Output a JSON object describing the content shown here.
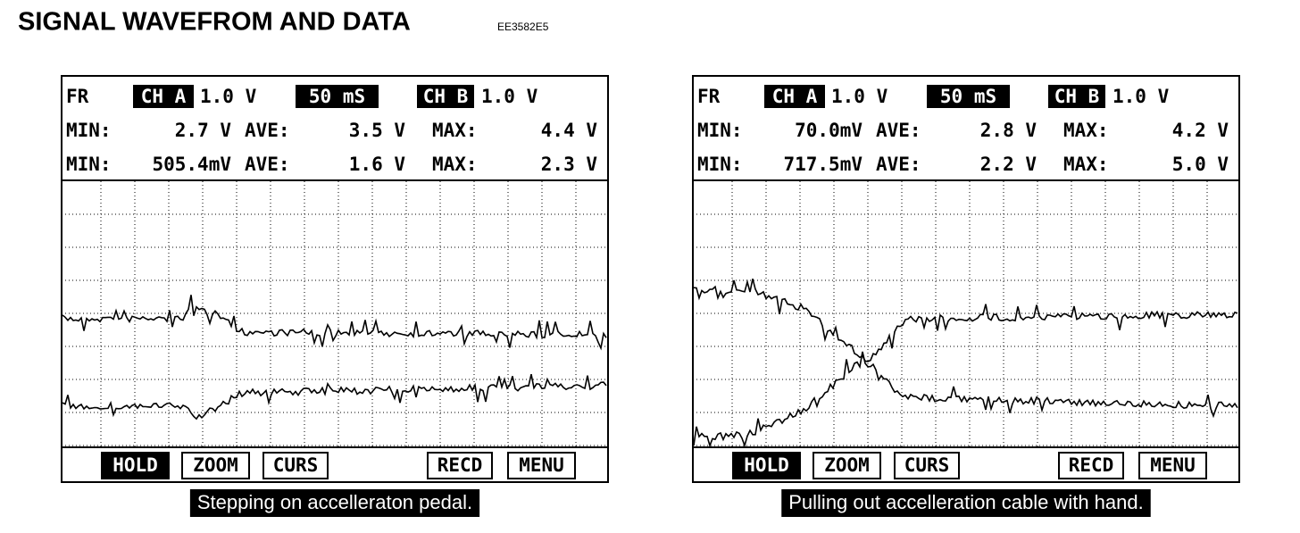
{
  "header": {
    "title": "SIGNAL WAVEFROM AND DATA",
    "code": "EE3582E5"
  },
  "panels": [
    {
      "status": {
        "fr": "FR",
        "ch_a": "CH A",
        "ch_a_scale": "1.0 V",
        "timebase": "50 mS",
        "ch_b": "CH B",
        "ch_b_scale": "1.0 V"
      },
      "rows": [
        {
          "min_label": "MIN:",
          "min": "2.7 V",
          "ave_label": "AVE:",
          "ave": "3.5 V",
          "max_label": "MAX:",
          "max": "4.4 V"
        },
        {
          "min_label": "MIN:",
          "min": "505.4mV",
          "ave_label": "AVE:",
          "ave": "1.6 V",
          "max_label": "MAX:",
          "max": "2.3 V"
        }
      ],
      "buttons": [
        "HOLD",
        "ZOOM",
        "CURS",
        "RECD",
        "MENU"
      ],
      "caption": "Stepping on accelleraton pedal."
    },
    {
      "status": {
        "fr": "FR",
        "ch_a": "CH A",
        "ch_a_scale": "1.0 V",
        "timebase": "50 mS",
        "ch_b": "CH B",
        "ch_b_scale": "1.0 V"
      },
      "rows": [
        {
          "min_label": "MIN:",
          "min": "70.0mV",
          "ave_label": "AVE:",
          "ave": "2.8 V",
          "max_label": "MAX:",
          "max": "4.2 V"
        },
        {
          "min_label": "MIN:",
          "min": "717.5mV",
          "ave_label": "AVE:",
          "ave": "2.2 V",
          "max_label": "MAX:",
          "max": "5.0 V"
        }
      ],
      "buttons": [
        "HOLD",
        "ZOOM",
        "CURS",
        "RECD",
        "MENU"
      ],
      "caption": "Pulling out accelleration cable with hand."
    }
  ]
}
